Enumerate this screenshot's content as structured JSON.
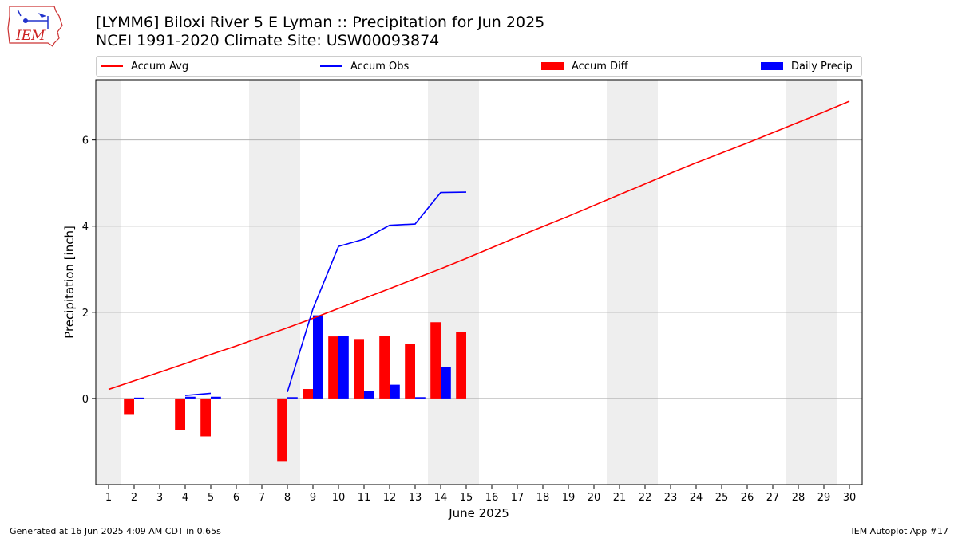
{
  "header": {
    "title_line1": "[LYMM6] Biloxi River 5 E Lyman :: Precipitation for Jun 2025",
    "title_line2": "NCEI 1991-2020 Climate Site: USW00093874",
    "logo_text": "IEM"
  },
  "legend": {
    "accum_avg": "Accum Avg",
    "accum_obs": "Accum Obs",
    "accum_diff": "Accum Diff",
    "daily_precip": "Daily Precip"
  },
  "footer": {
    "left": "Generated at 16 Jun 2025 4:09 AM CDT in 0.65s",
    "right": "IEM Autoplot App #17"
  },
  "colors": {
    "avg": "#ff0000",
    "obs": "#0000ff",
    "diff": "#ff0000",
    "daily": "#0000ff",
    "weekend_shade": "#eeeeee",
    "grid": "#b0b0b0"
  },
  "chart_data": {
    "type": "bar",
    "xlabel": "June 2025",
    "ylabel": "Precipitation [inch]",
    "xlim": [
      0.5,
      30.5
    ],
    "ylim": [
      -2.0,
      7.4
    ],
    "yticks": [
      0,
      2,
      4,
      6
    ],
    "xticks": [
      1,
      2,
      3,
      4,
      5,
      6,
      7,
      8,
      9,
      10,
      11,
      12,
      13,
      14,
      15,
      16,
      17,
      18,
      19,
      20,
      21,
      22,
      23,
      24,
      25,
      26,
      27,
      28,
      29,
      30
    ],
    "grid": "horizontal",
    "legend_position": "top",
    "weekend_shading": [
      [
        0.5,
        1.5
      ],
      [
        6.5,
        8.5
      ],
      [
        13.5,
        15.5
      ],
      [
        20.5,
        22.5
      ],
      [
        27.5,
        29.5
      ]
    ],
    "accum_avg": {
      "name": "Accum Avg",
      "x": [
        1,
        2,
        3,
        4,
        5,
        6,
        7,
        8,
        9,
        10,
        11,
        12,
        13,
        14,
        15,
        16,
        17,
        18,
        19,
        20,
        21,
        22,
        23,
        24,
        25,
        26,
        27,
        28,
        29,
        30
      ],
      "values": [
        0.21,
        0.41,
        0.61,
        0.81,
        1.02,
        1.22,
        1.43,
        1.64,
        1.86,
        2.09,
        2.32,
        2.55,
        2.78,
        3.01,
        3.25,
        3.5,
        3.75,
        3.99,
        4.23,
        4.48,
        4.73,
        4.98,
        5.23,
        5.47,
        5.7,
        5.93,
        6.17,
        6.41,
        6.65,
        6.9
      ]
    },
    "accum_obs": {
      "name": "Accum Obs",
      "segments": [
        {
          "x": [
            4,
            5
          ],
          "values": [
            0.07,
            0.12
          ]
        },
        {
          "x": [
            8,
            9,
            10,
            11,
            12,
            13,
            14,
            15
          ],
          "values": [
            0.15,
            2.08,
            3.53,
            3.7,
            4.02,
            4.05,
            4.78,
            4.79
          ]
        }
      ]
    },
    "accum_diff": {
      "name": "Accum Diff",
      "x": [
        2,
        4,
        5,
        8,
        9,
        10,
        11,
        12,
        13,
        14,
        15
      ],
      "values": [
        -0.38,
        -0.73,
        -0.88,
        -1.47,
        0.22,
        1.44,
        1.38,
        1.46,
        1.27,
        1.77,
        1.54
      ]
    },
    "daily_precip": {
      "name": "Daily Precip",
      "x": [
        2,
        4,
        5,
        8,
        9,
        10,
        11,
        12,
        13,
        14
      ],
      "values": [
        0.02,
        0.04,
        0.04,
        0.03,
        1.93,
        1.45,
        0.17,
        0.32,
        0.03,
        0.73
      ]
    }
  }
}
